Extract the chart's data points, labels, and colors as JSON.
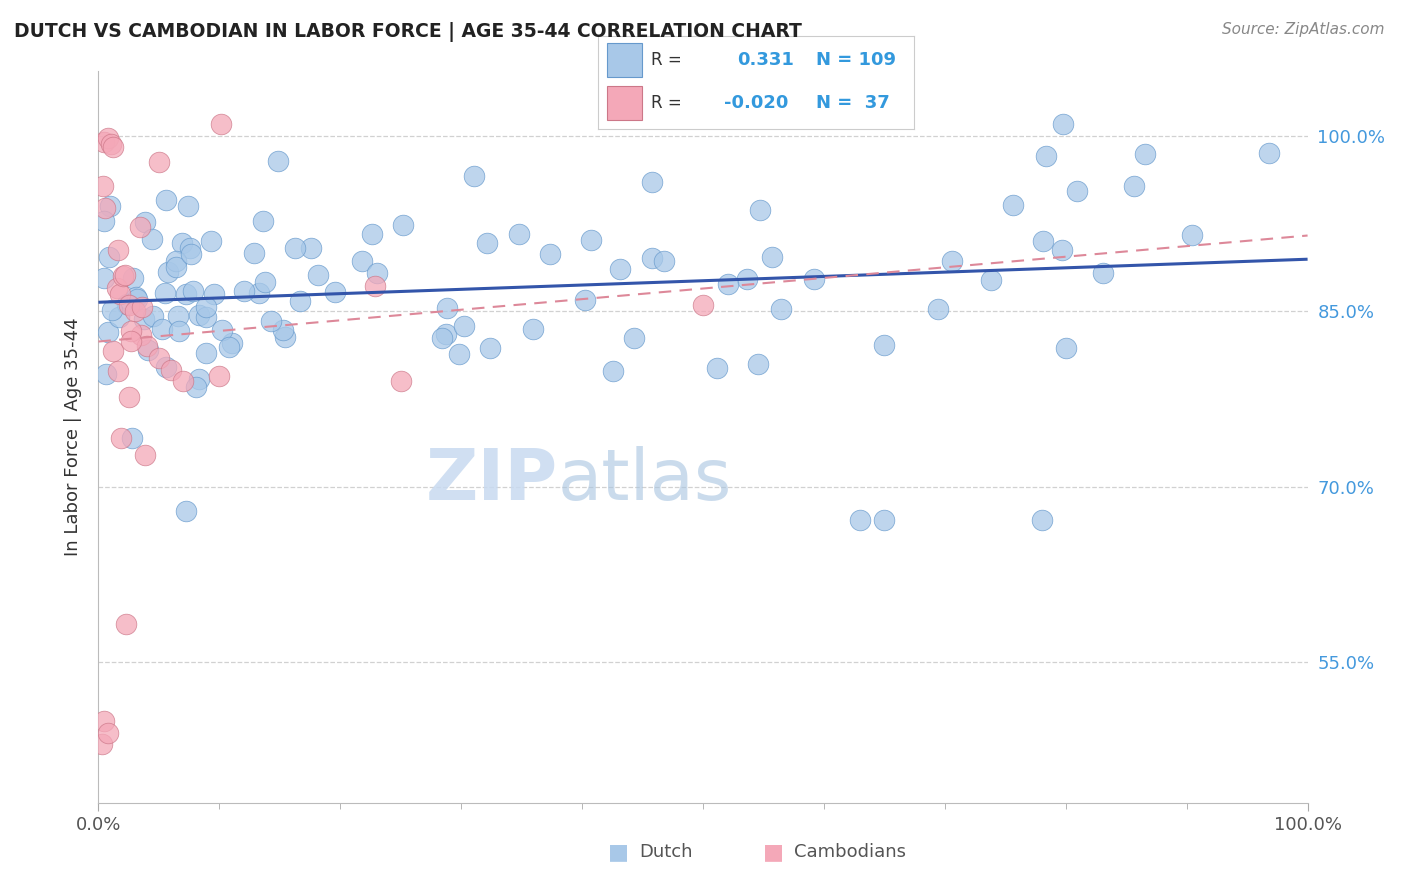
{
  "title": "DUTCH VS CAMBODIAN IN LABOR FORCE | AGE 35-44 CORRELATION CHART",
  "source": "Source: ZipAtlas.com",
  "ylabel": "In Labor Force | Age 35-44",
  "dutch_R": 0.331,
  "dutch_N": 109,
  "cambodian_R": -0.02,
  "cambodian_N": 37,
  "dutch_color": "#a8c8e8",
  "dutch_edge": "#6699cc",
  "cambodian_color": "#f4a8b8",
  "cambodian_edge": "#cc7788",
  "trend_dutch_color": "#3355aa",
  "trend_cambodian_color": "#dd8899",
  "background_color": "#ffffff",
  "grid_color": "#cccccc",
  "watermark_zip": "ZIP",
  "watermark_atlas": "atlas",
  "ytick_vals": [
    0.55,
    0.7,
    0.85,
    1.0
  ],
  "ytick_labels": [
    "55.0%",
    "70.0%",
    "85.0%",
    "100.0%"
  ],
  "xmin": 0.0,
  "xmax": 1.0,
  "ymin": 0.43,
  "ymax": 1.055
}
